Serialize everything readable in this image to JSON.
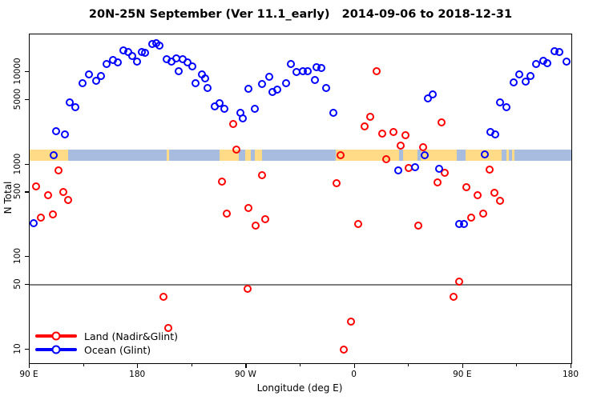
{
  "title": "20N-25N September (Ver 11.1_early)   2014-09-06 to 2018-12-31",
  "chart_data": {
    "type": "scatter",
    "title": "20N-25N September (Ver 11.1_early)   2014-09-06 to 2018-12-31",
    "xlabel": "Longitude (deg E)",
    "ylabel": "N Total",
    "x_range": [
      90,
      540
    ],
    "x_ticks": [
      {
        "value": 90,
        "label": "90 E"
      },
      {
        "value": 180,
        "label": "180"
      },
      {
        "value": 270,
        "label": "90 W"
      },
      {
        "value": 360,
        "label": "0"
      },
      {
        "value": 450,
        "label": "90 E"
      },
      {
        "value": 540,
        "label": "180"
      }
    ],
    "x_minor_ticks": [
      135,
      225,
      315,
      405,
      495
    ],
    "y_scale": "log",
    "y_range": [
      7.1,
      25500
    ],
    "y_ticks": [
      10000,
      5000,
      1000,
      500,
      100,
      50,
      10
    ],
    "reference_line_y": 50,
    "grid": "off",
    "legend_position": "bottom-left",
    "map_strip": {
      "n_top": 1460,
      "n_bottom": 1100,
      "ocean_color": "#A7BCDF",
      "land_color": "#FFDB87",
      "land_segments": [
        [
          90,
          122
        ],
        [
          204,
          206
        ],
        [
          248,
          264
        ],
        [
          269,
          274
        ],
        [
          277,
          283
        ],
        [
          344,
          397
        ],
        [
          400,
          412
        ],
        [
          415,
          445
        ],
        [
          452,
          482
        ],
        [
          486,
          488
        ],
        [
          491,
          493
        ]
      ]
    },
    "series": [
      {
        "name": "Land (Nadir&Glint)",
        "color": "#FF0000",
        "points": [
          [
            95,
            577
          ],
          [
            99,
            264
          ],
          [
            105,
            464
          ],
          [
            109,
            291
          ],
          [
            114,
            865
          ],
          [
            118,
            502
          ],
          [
            122,
            417
          ],
          [
            201,
            37
          ],
          [
            205,
            17
          ],
          [
            250,
            654
          ],
          [
            254,
            295
          ],
          [
            259,
            2740
          ],
          [
            262,
            1450
          ],
          [
            271,
            45
          ],
          [
            272,
            337
          ],
          [
            278,
            220
          ],
          [
            283,
            763
          ],
          [
            286,
            255
          ],
          [
            345,
            628
          ],
          [
            348,
            1270
          ],
          [
            351,
            10
          ],
          [
            357,
            20
          ],
          [
            363,
            225
          ],
          [
            368,
            2600
          ],
          [
            373,
            3300
          ],
          [
            378,
            10100
          ],
          [
            383,
            2170
          ],
          [
            386,
            1150
          ],
          [
            392,
            2250
          ],
          [
            398,
            1610
          ],
          [
            402,
            2060
          ],
          [
            405,
            920
          ],
          [
            413,
            220
          ],
          [
            417,
            1530
          ],
          [
            429,
            638
          ],
          [
            432,
            2870
          ],
          [
            435,
            820
          ],
          [
            442,
            37
          ],
          [
            447,
            54
          ],
          [
            453,
            573
          ],
          [
            457,
            267
          ],
          [
            462,
            470
          ],
          [
            467,
            295
          ],
          [
            472,
            874
          ],
          [
            476,
            492
          ],
          [
            481,
            407
          ]
        ]
      },
      {
        "name": "Ocean (Glint)",
        "color": "#0000FF",
        "points": [
          [
            93,
            230
          ],
          [
            110,
            1270
          ],
          [
            112,
            2300
          ],
          [
            119,
            2100
          ],
          [
            123,
            4700
          ],
          [
            128,
            4200
          ],
          [
            134,
            7600
          ],
          [
            139,
            9400
          ],
          [
            145,
            8000
          ],
          [
            149,
            9000
          ],
          [
            154,
            12200
          ],
          [
            159,
            13600
          ],
          [
            163,
            12700
          ],
          [
            168,
            17100
          ],
          [
            172,
            16400
          ],
          [
            175,
            14900
          ],
          [
            179,
            13000
          ],
          [
            183,
            16400
          ],
          [
            186,
            16100
          ],
          [
            192,
            20100
          ],
          [
            195,
            20500
          ],
          [
            198,
            19300
          ],
          [
            204,
            13800
          ],
          [
            208,
            13000
          ],
          [
            212,
            14000
          ],
          [
            214,
            10300
          ],
          [
            217,
            13800
          ],
          [
            221,
            12700
          ],
          [
            225,
            11600
          ],
          [
            228,
            7600
          ],
          [
            233,
            9400
          ],
          [
            236,
            8600
          ],
          [
            238,
            6700
          ],
          [
            244,
            4270
          ],
          [
            248,
            4570
          ],
          [
            252,
            3990
          ],
          [
            265,
            3620
          ],
          [
            267,
            3130
          ],
          [
            272,
            6640
          ],
          [
            277,
            3990
          ],
          [
            283,
            7450
          ],
          [
            289,
            8900
          ],
          [
            292,
            6100
          ],
          [
            296,
            6400
          ],
          [
            303,
            7600
          ],
          [
            307,
            12100
          ],
          [
            312,
            9950
          ],
          [
            317,
            10300
          ],
          [
            321,
            10200
          ],
          [
            327,
            8150
          ],
          [
            328,
            11200
          ],
          [
            332,
            11100
          ],
          [
            336,
            6700
          ],
          [
            342,
            3620
          ],
          [
            396,
            870
          ],
          [
            410,
            930
          ],
          [
            418,
            1250
          ],
          [
            421,
            5220
          ],
          [
            425,
            5700
          ],
          [
            430,
            890
          ],
          [
            447,
            226
          ],
          [
            451,
            226
          ],
          [
            468,
            1290
          ],
          [
            473,
            2240
          ],
          [
            477,
            2120
          ],
          [
            481,
            4660
          ],
          [
            486,
            4180
          ],
          [
            492,
            7770
          ],
          [
            497,
            9350
          ],
          [
            502,
            7930
          ],
          [
            506,
            9050
          ],
          [
            511,
            12100
          ],
          [
            517,
            13200
          ],
          [
            520,
            12500
          ],
          [
            526,
            16900
          ],
          [
            530,
            16400
          ],
          [
            536,
            12900
          ]
        ]
      }
    ]
  }
}
